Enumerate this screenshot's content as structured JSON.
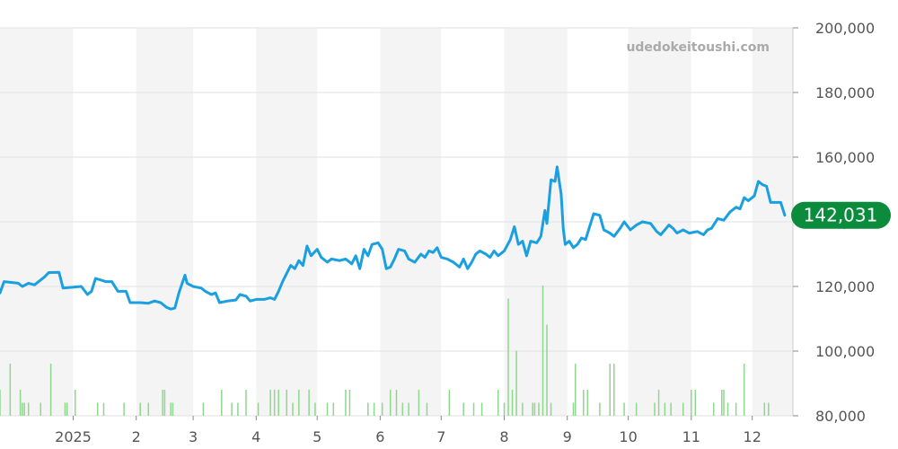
{
  "watermark": "udedokeitoushi.com",
  "current_value_label": "142,031",
  "colors": {
    "line": "#1aa0e0",
    "badge": "#0a8c3c",
    "volume": "#8fd68f",
    "band": "#f4f4f4",
    "grid": "#e2e2e2"
  },
  "chart_data": {
    "type": "line",
    "title": "",
    "xlabel": "",
    "ylabel": "",
    "ylim": [
      80000,
      200000
    ],
    "y_ticks": [
      "200,000",
      "180,000",
      "160,000",
      "140,000",
      "120,000",
      "100,000",
      "80,000"
    ],
    "y_tick_values": [
      200000,
      180000,
      160000,
      140000,
      120000,
      100000,
      80000
    ],
    "xlim": [
      "2024-11-26",
      "2025-12-21"
    ],
    "x_ticks": [
      {
        "label": "2025",
        "date": "2025-01-01"
      },
      {
        "label": "2",
        "date": "2025-02-01"
      },
      {
        "label": "3",
        "date": "2025-03-01"
      },
      {
        "label": "4",
        "date": "2025-04-01"
      },
      {
        "label": "5",
        "date": "2025-05-01"
      },
      {
        "label": "6",
        "date": "2025-06-01"
      },
      {
        "label": "7",
        "date": "2025-07-01"
      },
      {
        "label": "8",
        "date": "2025-08-01"
      },
      {
        "label": "9",
        "date": "2025-09-01"
      },
      {
        "label": "10",
        "date": "2025-10-01"
      },
      {
        "label": "11",
        "date": "2025-11-01"
      },
      {
        "label": "12",
        "date": "2025-12-01"
      }
    ],
    "alternating_month_bands": true,
    "grid": true,
    "last_value": 142031,
    "price_series": [
      [
        "2024-11-26",
        118000
      ],
      [
        "2024-11-28",
        121500
      ],
      [
        "2024-12-05",
        121000
      ],
      [
        "2024-12-07",
        120000
      ],
      [
        "2024-12-10",
        121000
      ],
      [
        "2024-12-13",
        120500
      ],
      [
        "2024-12-18",
        123000
      ],
      [
        "2024-12-20",
        124300
      ],
      [
        "2024-12-25",
        124400
      ],
      [
        "2024-12-27",
        119500
      ],
      [
        "2025-01-05",
        120000
      ],
      [
        "2025-01-08",
        117500
      ],
      [
        "2025-01-10",
        118500
      ],
      [
        "2025-01-12",
        122500
      ],
      [
        "2025-01-17",
        121500
      ],
      [
        "2025-01-20",
        121500
      ],
      [
        "2025-01-23",
        118500
      ],
      [
        "2025-01-27",
        118500
      ],
      [
        "2025-01-29",
        115000
      ],
      [
        "2025-02-03",
        115000
      ],
      [
        "2025-02-07",
        114800
      ],
      [
        "2025-02-10",
        115500
      ],
      [
        "2025-02-13",
        115000
      ],
      [
        "2025-02-16",
        113500
      ],
      [
        "2025-02-18",
        113000
      ],
      [
        "2025-02-20",
        113300
      ],
      [
        "2025-02-22",
        118000
      ],
      [
        "2025-02-25",
        123500
      ],
      [
        "2025-02-26",
        121000
      ],
      [
        "2025-03-01",
        120000
      ],
      [
        "2025-03-05",
        119500
      ],
      [
        "2025-03-07",
        118500
      ],
      [
        "2025-03-10",
        117500
      ],
      [
        "2025-03-12",
        118000
      ],
      [
        "2025-03-14",
        115000
      ],
      [
        "2025-03-18",
        115500
      ],
      [
        "2025-03-22",
        115800
      ],
      [
        "2025-03-24",
        117500
      ],
      [
        "2025-03-27",
        117000
      ],
      [
        "2025-03-29",
        115500
      ],
      [
        "2025-04-01",
        116000
      ],
      [
        "2025-04-05",
        116000
      ],
      [
        "2025-04-08",
        116500
      ],
      [
        "2025-04-10",
        116000
      ],
      [
        "2025-04-12",
        118500
      ],
      [
        "2025-04-14",
        121500
      ],
      [
        "2025-04-16",
        124000
      ],
      [
        "2025-04-18",
        126500
      ],
      [
        "2025-04-20",
        125500
      ],
      [
        "2025-04-22",
        128000
      ],
      [
        "2025-04-24",
        126500
      ],
      [
        "2025-04-26",
        132500
      ],
      [
        "2025-04-28",
        129500
      ],
      [
        "2025-05-01",
        131500
      ],
      [
        "2025-05-03",
        129000
      ],
      [
        "2025-05-06",
        127500
      ],
      [
        "2025-05-08",
        128500
      ],
      [
        "2025-05-12",
        128000
      ],
      [
        "2025-05-15",
        128500
      ],
      [
        "2025-05-18",
        127000
      ],
      [
        "2025-05-20",
        129500
      ],
      [
        "2025-05-22",
        125500
      ],
      [
        "2025-05-24",
        131500
      ],
      [
        "2025-05-26",
        129500
      ],
      [
        "2025-05-28",
        133000
      ],
      [
        "2025-05-31",
        133500
      ],
      [
        "2025-06-02",
        131500
      ],
      [
        "2025-06-04",
        125500
      ],
      [
        "2025-06-06",
        126000
      ],
      [
        "2025-06-08",
        128500
      ],
      [
        "2025-06-10",
        131500
      ],
      [
        "2025-06-13",
        131000
      ],
      [
        "2025-06-15",
        128500
      ],
      [
        "2025-06-18",
        127500
      ],
      [
        "2025-06-21",
        130000
      ],
      [
        "2025-06-23",
        129000
      ],
      [
        "2025-06-25",
        131000
      ],
      [
        "2025-06-27",
        130500
      ],
      [
        "2025-06-29",
        132000
      ],
      [
        "2025-07-01",
        129000
      ],
      [
        "2025-07-04",
        128500
      ],
      [
        "2025-07-07",
        127500
      ],
      [
        "2025-07-10",
        126000
      ],
      [
        "2025-07-12",
        128500
      ],
      [
        "2025-07-14",
        125500
      ],
      [
        "2025-07-16",
        127500
      ],
      [
        "2025-07-18",
        130000
      ],
      [
        "2025-07-20",
        131000
      ],
      [
        "2025-07-23",
        130000
      ],
      [
        "2025-07-25",
        129000
      ],
      [
        "2025-07-27",
        131000
      ],
      [
        "2025-07-29",
        129500
      ],
      [
        "2025-08-01",
        131000
      ],
      [
        "2025-08-04",
        134500
      ],
      [
        "2025-08-06",
        138500
      ],
      [
        "2025-08-08",
        133000
      ],
      [
        "2025-08-10",
        134000
      ],
      [
        "2025-08-12",
        129500
      ],
      [
        "2025-08-14",
        134000
      ],
      [
        "2025-08-17",
        133500
      ],
      [
        "2025-08-19",
        135500
      ],
      [
        "2025-08-21",
        143500
      ],
      [
        "2025-08-22",
        139500
      ],
      [
        "2025-08-24",
        153000
      ],
      [
        "2025-08-26",
        152500
      ],
      [
        "2025-08-27",
        157000
      ],
      [
        "2025-08-29",
        148500
      ],
      [
        "2025-08-30",
        138000
      ],
      [
        "2025-08-31",
        133000
      ],
      [
        "2025-09-02",
        134000
      ],
      [
        "2025-09-04",
        132000
      ],
      [
        "2025-09-06",
        133000
      ],
      [
        "2025-09-08",
        135000
      ],
      [
        "2025-09-10",
        134500
      ],
      [
        "2025-09-12",
        138500
      ],
      [
        "2025-09-14",
        142500
      ],
      [
        "2025-09-17",
        142000
      ],
      [
        "2025-09-19",
        137500
      ],
      [
        "2025-09-22",
        136500
      ],
      [
        "2025-09-24",
        135500
      ],
      [
        "2025-09-27",
        138000
      ],
      [
        "2025-09-29",
        140000
      ],
      [
        "2025-10-02",
        137500
      ],
      [
        "2025-10-05",
        139000
      ],
      [
        "2025-10-08",
        140000
      ],
      [
        "2025-10-12",
        139500
      ],
      [
        "2025-10-15",
        137000
      ],
      [
        "2025-10-17",
        136000
      ],
      [
        "2025-10-19",
        137500
      ],
      [
        "2025-10-21",
        139000
      ],
      [
        "2025-10-23",
        138000
      ],
      [
        "2025-10-25",
        136500
      ],
      [
        "2025-10-28",
        137500
      ],
      [
        "2025-10-31",
        136500
      ],
      [
        "2025-11-04",
        137000
      ],
      [
        "2025-11-07",
        136000
      ],
      [
        "2025-11-09",
        137500
      ],
      [
        "2025-11-11",
        138000
      ],
      [
        "2025-11-14",
        141000
      ],
      [
        "2025-11-17",
        140500
      ],
      [
        "2025-11-20",
        143000
      ],
      [
        "2025-11-23",
        144500
      ],
      [
        "2025-11-25",
        144000
      ],
      [
        "2025-11-27",
        147500
      ],
      [
        "2025-11-29",
        146500
      ],
      [
        "2025-12-02",
        148000
      ],
      [
        "2025-12-04",
        152500
      ],
      [
        "2025-12-06",
        151500
      ],
      [
        "2025-12-08",
        151000
      ],
      [
        "2025-12-10",
        146000
      ],
      [
        "2025-12-12",
        146000
      ],
      [
        "2025-12-15",
        146000
      ],
      [
        "2025-12-17",
        142031
      ]
    ],
    "volume_series": [
      [
        "2024-11-26",
        1
      ],
      [
        "2024-12-01",
        2
      ],
      [
        "2024-12-06",
        1
      ],
      [
        "2024-12-07",
        0.5
      ],
      [
        "2024-12-08",
        0.5
      ],
      [
        "2024-12-10",
        0.5
      ],
      [
        "2024-12-16",
        0.5
      ],
      [
        "2024-12-21",
        2
      ],
      [
        "2024-12-28",
        0.5
      ],
      [
        "2024-12-29",
        0.5
      ],
      [
        "2025-01-02",
        1
      ],
      [
        "2025-01-13",
        0.5
      ],
      [
        "2025-01-16",
        0.5
      ],
      [
        "2025-01-26",
        0.5
      ],
      [
        "2025-02-03",
        0.5
      ],
      [
        "2025-02-07",
        0.5
      ],
      [
        "2025-02-14",
        1
      ],
      [
        "2025-02-15",
        1
      ],
      [
        "2025-02-18",
        0.5
      ],
      [
        "2025-02-19",
        0.5
      ],
      [
        "2025-03-06",
        0.5
      ],
      [
        "2025-03-15",
        1
      ],
      [
        "2025-03-20",
        0.5
      ],
      [
        "2025-03-23",
        0.5
      ],
      [
        "2025-03-27",
        1
      ],
      [
        "2025-04-02",
        0.5
      ],
      [
        "2025-04-08",
        1
      ],
      [
        "2025-04-10",
        1
      ],
      [
        "2025-04-12",
        1
      ],
      [
        "2025-04-16",
        1
      ],
      [
        "2025-04-19",
        0.5
      ],
      [
        "2025-04-22",
        1
      ],
      [
        "2025-04-27",
        1
      ],
      [
        "2025-04-30",
        0.5
      ],
      [
        "2025-05-06",
        0.5
      ],
      [
        "2025-05-09",
        0.5
      ],
      [
        "2025-05-15",
        1
      ],
      [
        "2025-05-17",
        1
      ],
      [
        "2025-05-26",
        0.5
      ],
      [
        "2025-05-29",
        0.5
      ],
      [
        "2025-06-02",
        0.5
      ],
      [
        "2025-06-06",
        1
      ],
      [
        "2025-06-09",
        1
      ],
      [
        "2025-06-12",
        0.5
      ],
      [
        "2025-06-15",
        0.5
      ],
      [
        "2025-06-20",
        1
      ],
      [
        "2025-06-24",
        0.5
      ],
      [
        "2025-07-05",
        1
      ],
      [
        "2025-07-12",
        0.5
      ],
      [
        "2025-07-17",
        0.5
      ],
      [
        "2025-07-21",
        0.5
      ],
      [
        "2025-07-29",
        1
      ],
      [
        "2025-08-01",
        0.5
      ],
      [
        "2025-08-03",
        4.5
      ],
      [
        "2025-08-05",
        1
      ],
      [
        "2025-08-07",
        2.5
      ],
      [
        "2025-08-10",
        0.5
      ],
      [
        "2025-08-15",
        0.5
      ],
      [
        "2025-08-16",
        0.5
      ],
      [
        "2025-08-18",
        0.5
      ],
      [
        "2025-08-20",
        5
      ],
      [
        "2025-08-22",
        3.5
      ],
      [
        "2025-08-24",
        0.5
      ],
      [
        "2025-09-04",
        0.5
      ],
      [
        "2025-09-05",
        2
      ],
      [
        "2025-09-09",
        1
      ],
      [
        "2025-09-11",
        1
      ],
      [
        "2025-09-17",
        0.5
      ],
      [
        "2025-09-22",
        2
      ],
      [
        "2025-09-24",
        2
      ],
      [
        "2025-09-29",
        0.5
      ],
      [
        "2025-10-05",
        0.5
      ],
      [
        "2025-10-14",
        0.5
      ],
      [
        "2025-10-16",
        1
      ],
      [
        "2025-10-19",
        0.5
      ],
      [
        "2025-10-22",
        0.5
      ],
      [
        "2025-10-28",
        0.5
      ],
      [
        "2025-11-01",
        1
      ],
      [
        "2025-11-03",
        1
      ],
      [
        "2025-11-12",
        0.5
      ],
      [
        "2025-11-16",
        1
      ],
      [
        "2025-11-17",
        1
      ],
      [
        "2025-11-19",
        0.5
      ],
      [
        "2025-11-23",
        0.5
      ],
      [
        "2025-11-27",
        2
      ],
      [
        "2025-12-07",
        0.5
      ],
      [
        "2025-12-09",
        0.5
      ]
    ]
  }
}
